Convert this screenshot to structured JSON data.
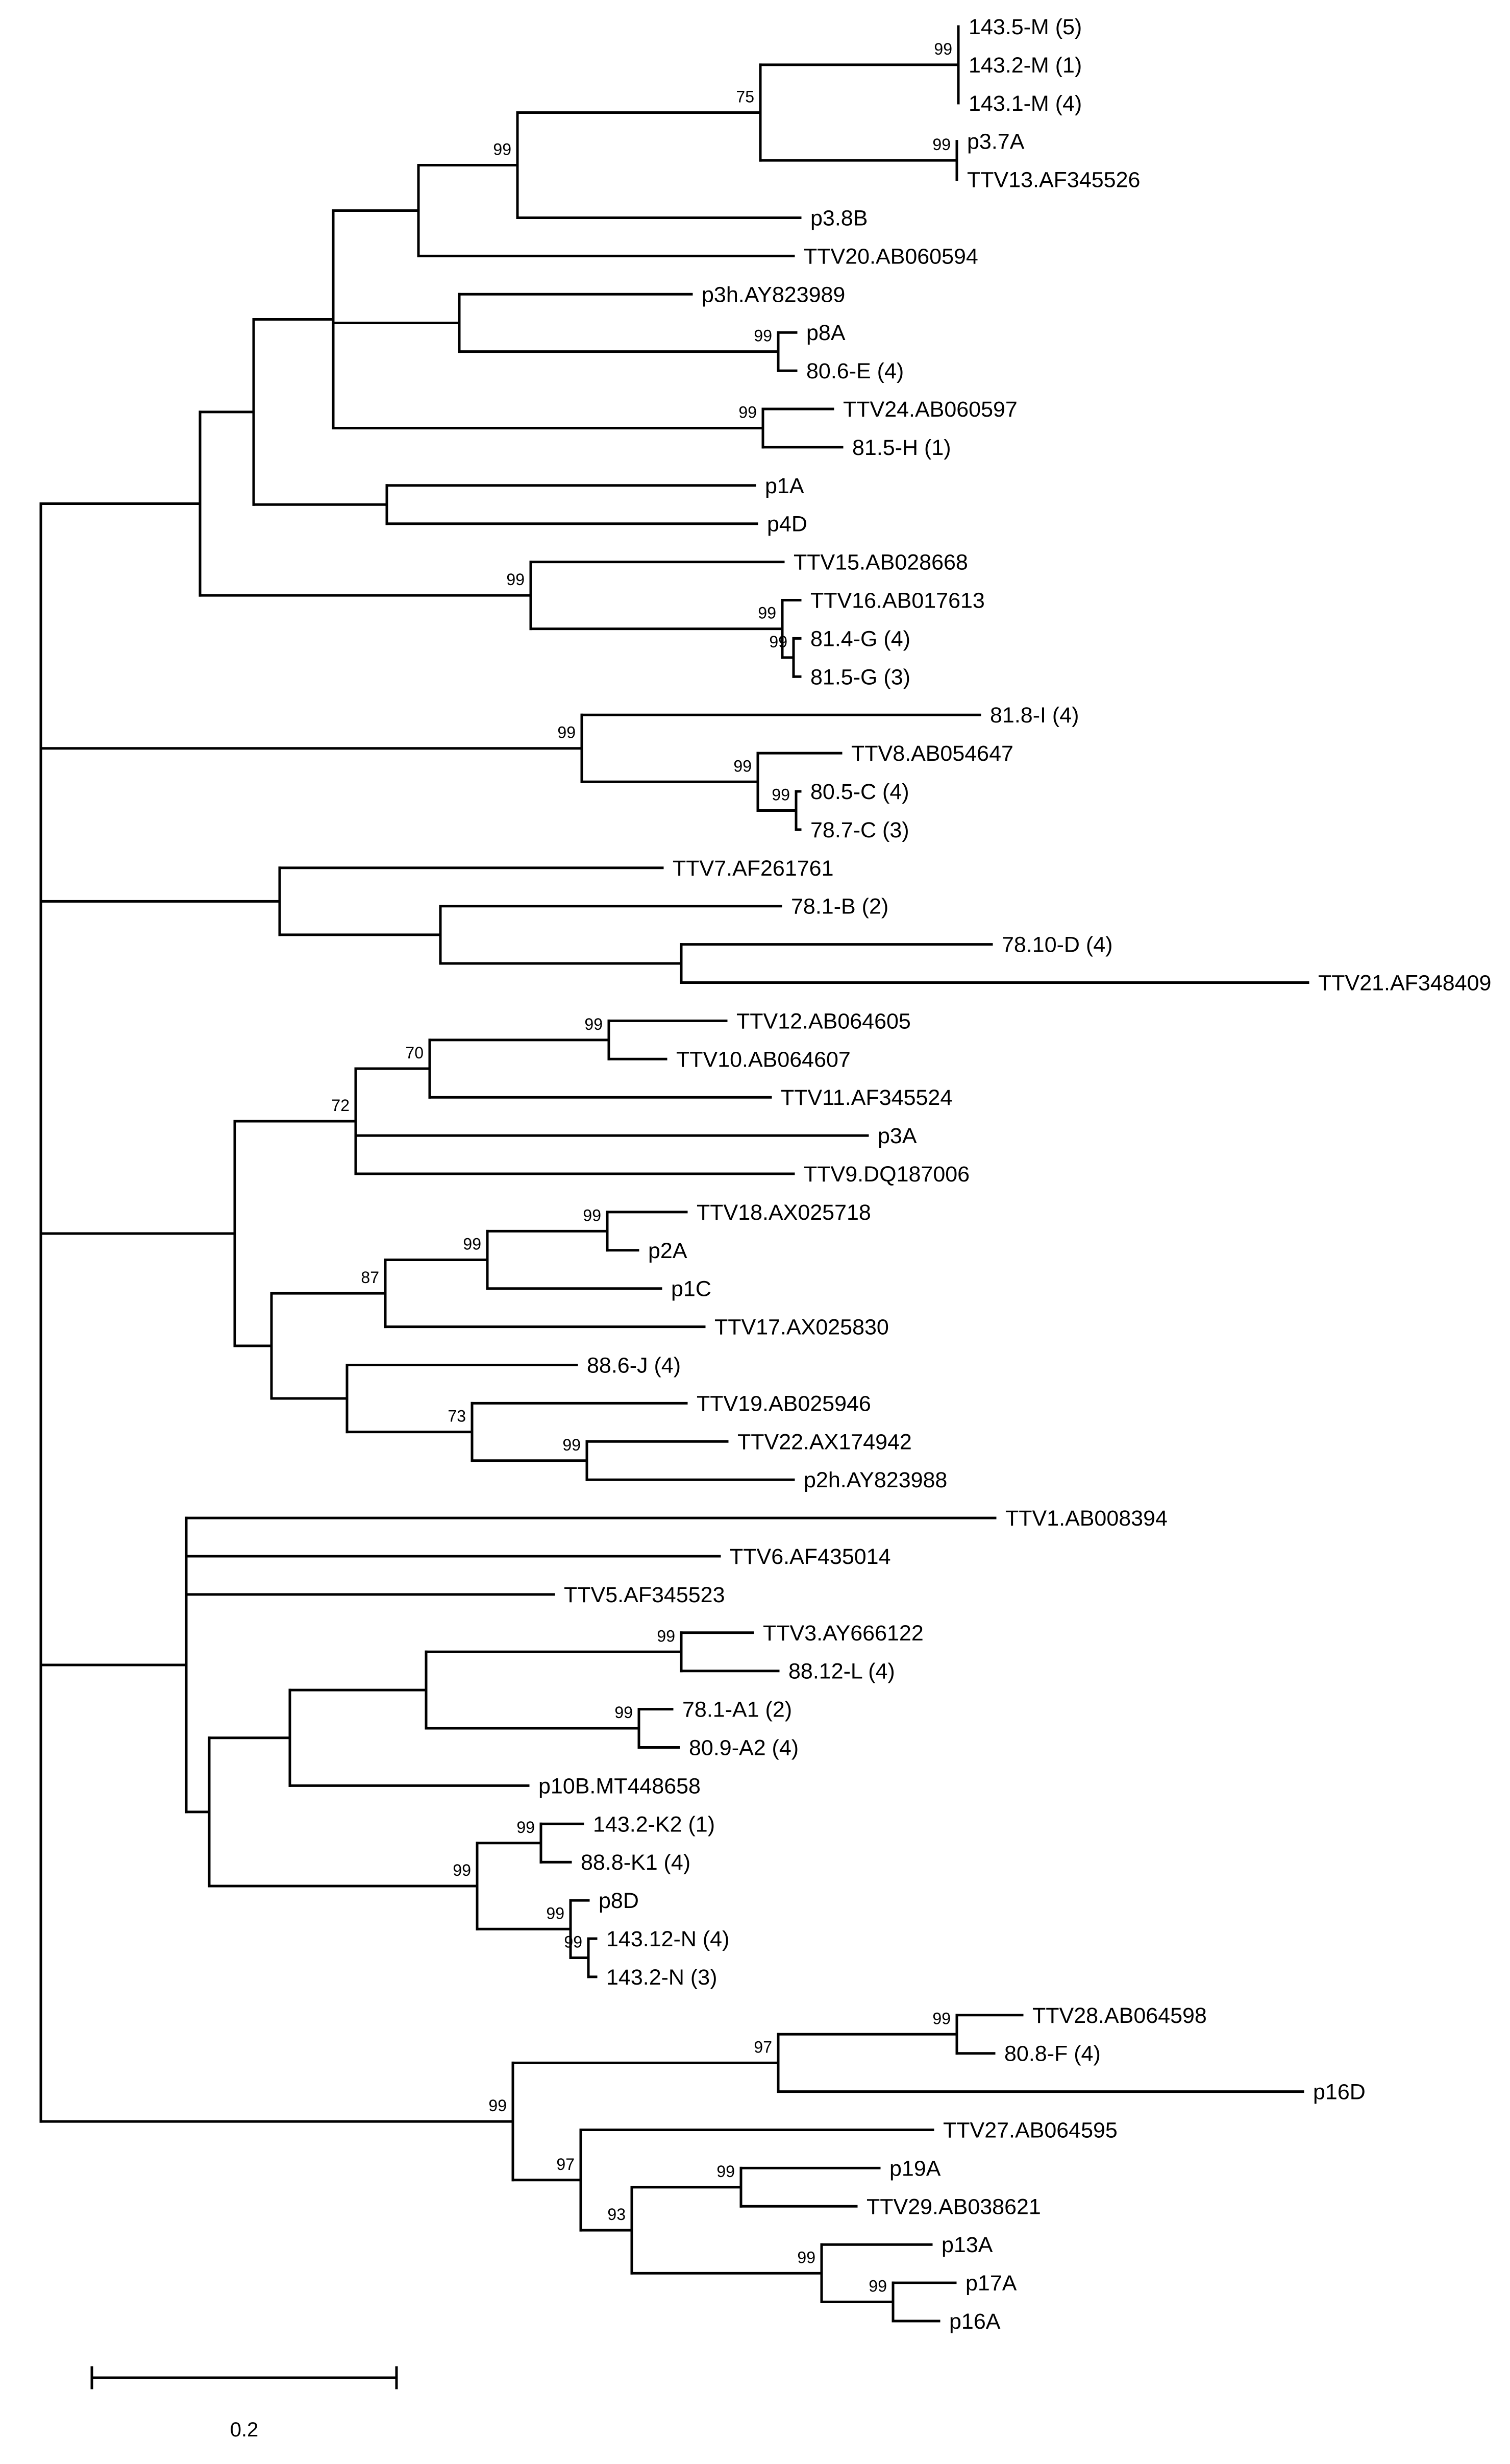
{
  "figure": {
    "type": "phylogenetic-tree"
  },
  "tree": {
    "label": "root",
    "children": [
      {
        "children": [
          {
            "children": [
              {
                "children": [
                  {
                    "children": [
                      {
                        "support": "99",
                        "children": [
                          {
                            "support": "75",
                            "children": [
                              {
                                "support": "99",
                                "children": [
                                  {
                                    "label": "143.5-M (5)"
                                  },
                                  {
                                    "label": "143.2-M (1)"
                                  },
                                  {
                                    "label": "143.1-M (4)"
                                  }
                                ]
                              },
                              {
                                "support": "99",
                                "children": [
                                  {
                                    "label": "p3.7A"
                                  },
                                  {
                                    "label": "TTV13.AF345526"
                                  }
                                ]
                              }
                            ]
                          },
                          {
                            "label": "p3.8B"
                          }
                        ]
                      },
                      {
                        "label": "TTV20.AB060594"
                      }
                    ]
                  },
                  {
                    "children": [
                      {
                        "label": "p3h.AY823989"
                      },
                      {
                        "support": "99",
                        "children": [
                          {
                            "label": "p8A"
                          },
                          {
                            "label": "80.6-E (4)"
                          }
                        ]
                      }
                    ]
                  },
                  {
                    "support": "99",
                    "children": [
                      {
                        "label": "TTV24.AB060597"
                      },
                      {
                        "label": "81.5-H (1)"
                      }
                    ]
                  }
                ]
              },
              {
                "children": [
                  {
                    "label": "p1A"
                  },
                  {
                    "label": "p4D"
                  }
                ]
              }
            ]
          },
          {
            "support": "99",
            "children": [
              {
                "label": "TTV15.AB028668"
              },
              {
                "support": "99",
                "children": [
                  {
                    "label": "TTV16.AB017613"
                  },
                  {
                    "support": "99",
                    "children": [
                      {
                        "label": "81.4-G (4)"
                      },
                      {
                        "label": "81.5-G (3)"
                      }
                    ]
                  }
                ]
              }
            ]
          }
        ]
      },
      {
        "support": "99",
        "children": [
          {
            "label": "81.8-I (4)"
          },
          {
            "support": "99",
            "children": [
              {
                "label": "TTV8.AB054647"
              },
              {
                "support": "99",
                "children": [
                  {
                    "label": "80.5-C (4)"
                  },
                  {
                    "label": "78.7-C (3)"
                  }
                ]
              }
            ]
          }
        ]
      },
      {
        "children": [
          {
            "label": "TTV7.AF261761"
          },
          {
            "children": [
              {
                "label": "78.1-B (2)"
              },
              {
                "children": [
                  {
                    "label": "78.10-D (4)"
                  },
                  {
                    "label": "TTV21.AF348409"
                  }
                ]
              }
            ]
          }
        ]
      },
      {
        "children": [
          {
            "support": "72",
            "children": [
              {
                "support": "70",
                "children": [
                  {
                    "support": "99",
                    "children": [
                      {
                        "label": "TTV12.AB064605"
                      },
                      {
                        "label": "TTV10.AB064607"
                      }
                    ]
                  },
                  {
                    "label": "TTV11.AF345524"
                  }
                ]
              },
              {
                "label": "p3A"
              },
              {
                "label": "TTV9.DQ187006"
              }
            ]
          },
          {
            "children": [
              {
                "support": "87",
                "children": [
                  {
                    "support": "99",
                    "children": [
                      {
                        "support": "99",
                        "children": [
                          {
                            "label": "TTV18.AX025718"
                          },
                          {
                            "label": "p2A"
                          }
                        ]
                      },
                      {
                        "label": "p1C"
                      }
                    ]
                  },
                  {
                    "label": "TTV17.AX025830"
                  }
                ]
              },
              {
                "children": [
                  {
                    "label": "88.6-J (4)"
                  },
                  {
                    "support": "73",
                    "children": [
                      {
                        "label": "TTV19.AB025946"
                      },
                      {
                        "support": "99",
                        "children": [
                          {
                            "label": "TTV22.AX174942"
                          },
                          {
                            "label": "p2h.AY823988"
                          }
                        ]
                      }
                    ]
                  }
                ]
              }
            ]
          }
        ]
      },
      {
        "children": [
          {
            "label": "TTV1.AB008394"
          },
          {
            "label": "TTV6.AF435014"
          },
          {
            "label": "TTV5.AF345523"
          },
          {
            "children": [
              {
                "children": [
                  {
                    "children": [
                      {
                        "support": "99",
                        "children": [
                          {
                            "label": "TTV3.AY666122"
                          },
                          {
                            "label": "88.12-L (4)"
                          }
                        ]
                      },
                      {
                        "support": "99",
                        "children": [
                          {
                            "label": "78.1-A1 (2)"
                          },
                          {
                            "label": "80.9-A2 (4)"
                          }
                        ]
                      }
                    ]
                  },
                  {
                    "label": "p10B.MT448658"
                  }
                ]
              },
              {
                "support": "99",
                "children": [
                  {
                    "support": "99",
                    "children": [
                      {
                        "label": "143.2-K2 (1)"
                      },
                      {
                        "label": "88.8-K1 (4)"
                      }
                    ]
                  },
                  {
                    "support": "99",
                    "children": [
                      {
                        "label": "p8D"
                      },
                      {
                        "support": "99",
                        "children": [
                          {
                            "label": "143.12-N (4)"
                          },
                          {
                            "label": "143.2-N (3)"
                          }
                        ]
                      }
                    ]
                  }
                ]
              }
            ]
          }
        ]
      },
      {
        "support": "99",
        "children": [
          {
            "support": "97",
            "children": [
              {
                "support": "99",
                "children": [
                  {
                    "label": "TTV28.AB064598"
                  },
                  {
                    "label": "80.8-F (4)"
                  }
                ]
              },
              {
                "label": "p16D"
              }
            ]
          },
          {
            "support": "97",
            "children": [
              {
                "label": "TTV27.AB064595"
              },
              {
                "support": "93",
                "children": [
                  {
                    "support": "99",
                    "children": [
                      {
                        "label": "p19A"
                      },
                      {
                        "label": "TTV29.AB038621"
                      }
                    ]
                  },
                  {
                    "support": "99",
                    "children": [
                      {
                        "label": "p13A"
                      },
                      {
                        "support": "99",
                        "children": [
                          {
                            "label": "p17A"
                          },
                          {
                            "label": "p16A"
                          }
                        ]
                      }
                    ]
                  }
                ]
              }
            ]
          }
        ]
      }
    ]
  },
  "scale_bar": {
    "label": "0.2"
  }
}
